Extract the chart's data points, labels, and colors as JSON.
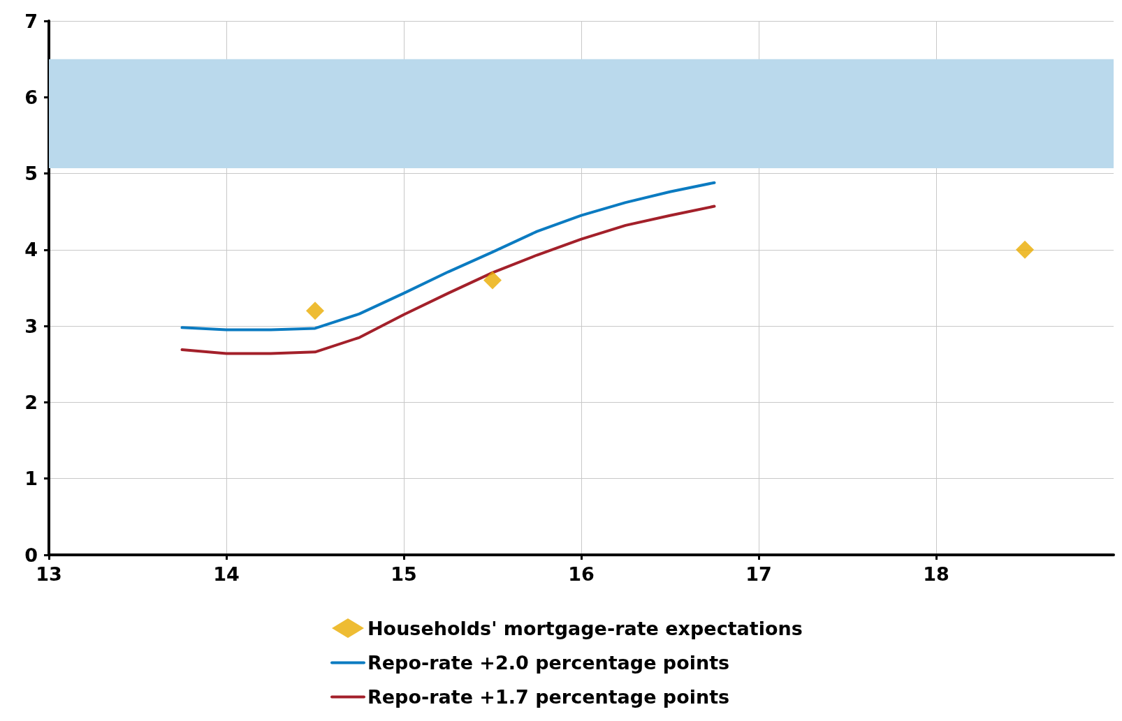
{
  "chart_data": {
    "type": "line",
    "xlim": [
      13,
      19
    ],
    "xticks": [
      13,
      14,
      15,
      16,
      17,
      18
    ],
    "ylim": [
      0,
      7
    ],
    "yticks": [
      0,
      1,
      2,
      3,
      4,
      5,
      6,
      7
    ],
    "grid": true,
    "legend": "bottom",
    "bands": [
      {
        "axis": "y",
        "from": 5.07,
        "to": 6.5,
        "color": "#bad9ec"
      }
    ],
    "series": [
      {
        "name": "Households' mortgage-rate expectations",
        "type": "scatter",
        "marker": "diamond",
        "color": "#eaab00",
        "x": [
          14.5,
          15.5,
          18.5
        ],
        "values": [
          3.2,
          3.6,
          4.0
        ]
      },
      {
        "name": "Repo-rate +2.0 percentage points",
        "marker": "none",
        "color": "#0b7bc1",
        "x": [
          13.75,
          14,
          14.25,
          14.5,
          14.75,
          15,
          15.25,
          15.5,
          15.75,
          16,
          16.25,
          16.5,
          16.75
        ],
        "values": [
          2.98,
          2.95,
          2.95,
          2.97,
          3.16,
          3.43,
          3.71,
          3.97,
          4.24,
          4.45,
          4.62,
          4.76,
          4.88
        ]
      },
      {
        "name": "Repo-rate +1.7 percentage points",
        "marker": "none",
        "color": "#a3202a",
        "x": [
          13.75,
          14,
          14.25,
          14.5,
          14.75,
          15,
          15.25,
          15.5,
          15.75,
          16,
          16.25,
          16.5,
          16.75
        ],
        "values": [
          2.69,
          2.64,
          2.64,
          2.66,
          2.85,
          3.15,
          3.43,
          3.7,
          3.93,
          4.14,
          4.32,
          4.45,
          4.57
        ]
      }
    ]
  }
}
